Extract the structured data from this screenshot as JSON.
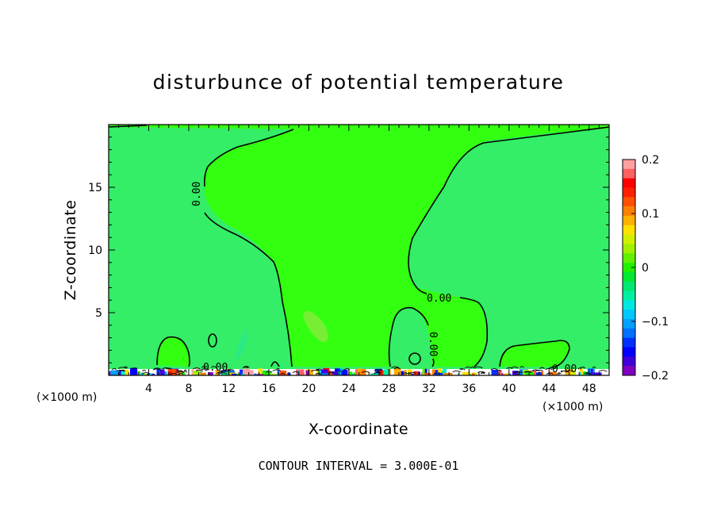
{
  "chart_data": {
    "type": "heatmap",
    "title": "disturbunce of potential temperature",
    "xlabel": "X-coordinate",
    "ylabel": "Z-coordinate",
    "x_unit_left": "(×1000 m)",
    "x_unit_right": "(×1000 m)",
    "xlim": [
      0,
      50
    ],
    "ylim": [
      0,
      20
    ],
    "x_ticks": [
      4,
      8,
      12,
      16,
      20,
      24,
      28,
      32,
      36,
      40,
      44,
      48
    ],
    "y_ticks": [
      5,
      10,
      15
    ],
    "contour_interval_text": "CONTOUR INTERVAL = 3.000E-01",
    "contour_labels": [
      "0.00",
      "0.00",
      "0.00",
      "0.00",
      "0.00"
    ],
    "colorbar": {
      "range": [
        -0.2,
        0.2
      ],
      "tick_values": [
        0.2,
        0.1,
        0,
        -0.1,
        -0.2
      ],
      "tick_labels": [
        "0.2",
        "0.1",
        "0",
        "−0.1",
        "−0.2"
      ],
      "colors": [
        "#7f00bf",
        "#3f00d8",
        "#0000ff",
        "#0030ff",
        "#0070ff",
        "#00a0ff",
        "#00c8ff",
        "#00e8e0",
        "#00f0a0",
        "#00e870",
        "#00e830",
        "#20f000",
        "#60f000",
        "#a0f000",
        "#d0f000",
        "#ffe000",
        "#ffb000",
        "#ff8000",
        "#ff5000",
        "#ff2000",
        "#ff0000",
        "#ff6060",
        "#ffa0a0"
      ]
    },
    "field": {
      "background_value": -0.01,
      "background_color": "#33ee66",
      "positive_region_color": "#33ff11",
      "weak_positive_color": "#77ee33"
    }
  }
}
